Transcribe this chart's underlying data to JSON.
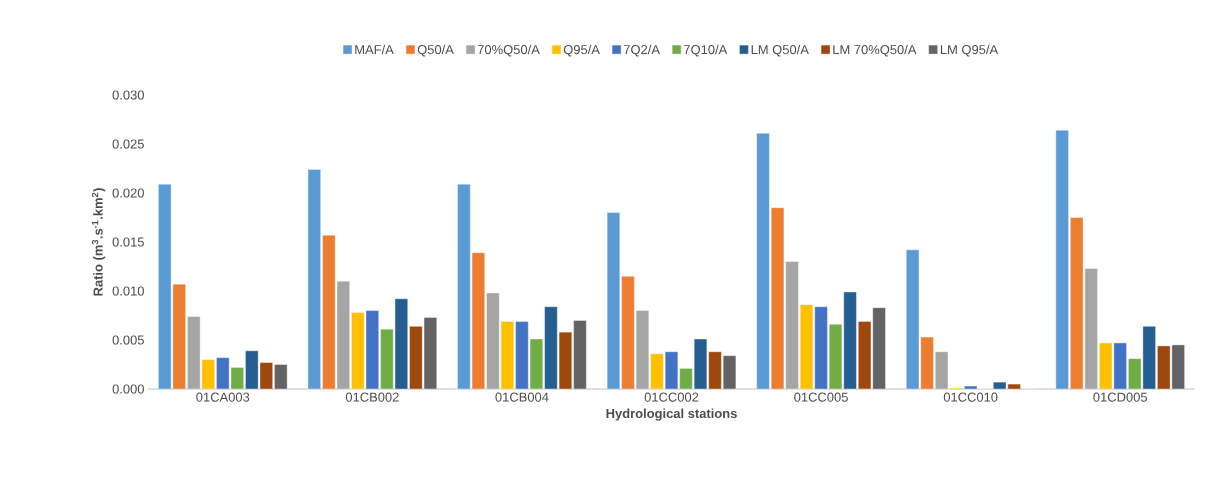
{
  "chart_data": {
    "type": "bar",
    "xlabel": "Hydrological stations",
    "ylabel": "Ratio (m$^{3}$.s$^{-1}$.km$^{2}$)",
    "categories": [
      "01CA003",
      "01CB002",
      "01CB004",
      "01CC002",
      "01CC005",
      "01CC010",
      "01CD005"
    ],
    "series": [
      {
        "name": "MAF/A",
        "color": "#5b9bd5",
        "values": [
          0.0209,
          0.0224,
          0.0209,
          0.018,
          0.0261,
          0.0142,
          0.0264
        ]
      },
      {
        "name": "Q50/A",
        "color": "#ed7d31",
        "values": [
          0.0107,
          0.0157,
          0.0139,
          0.0115,
          0.0185,
          0.0053,
          0.0175
        ]
      },
      {
        "name": "70%Q50/A",
        "color": "#a5a5a5",
        "values": [
          0.0074,
          0.011,
          0.0098,
          0.008,
          0.013,
          0.0038,
          0.0123
        ]
      },
      {
        "name": "Q95/A",
        "color": "#ffc000",
        "values": [
          0.003,
          0.0078,
          0.0069,
          0.0036,
          0.0086,
          0.0001,
          0.0047
        ]
      },
      {
        "name": "7Q2/A",
        "color": "#4472c4",
        "values": [
          0.0032,
          0.008,
          0.0069,
          0.0038,
          0.0084,
          0.0003,
          0.0047
        ]
      },
      {
        "name": "7Q10/A",
        "color": "#70ad47",
        "values": [
          0.0022,
          0.0061,
          0.0051,
          0.0021,
          0.0066,
          0.0,
          0.0031
        ]
      },
      {
        "name": "LM Q50/A",
        "color": "#255e91",
        "values": [
          0.0039,
          0.0092,
          0.0084,
          0.0051,
          0.0099,
          0.0007,
          0.0064
        ]
      },
      {
        "name": "LM 70%Q50/A",
        "color": "#9e480e",
        "values": [
          0.0027,
          0.0064,
          0.0058,
          0.0038,
          0.0069,
          0.0005,
          0.0044
        ]
      },
      {
        "name": "LM Q95/A",
        "color": "#636363",
        "values": [
          0.0025,
          0.0073,
          0.007,
          0.0034,
          0.0083,
          0.0,
          0.0045
        ]
      }
    ],
    "ylim": [
      0,
      0.03
    ],
    "yticks": [
      {
        "value": 0,
        "label": "0.000"
      },
      {
        "value": 0.005,
        "label": "0.005"
      },
      {
        "value": 0.01,
        "label": "0.010"
      },
      {
        "value": 0.015,
        "label": "0.015"
      },
      {
        "value": 0.02,
        "label": "0.020"
      },
      {
        "value": 0.025,
        "label": "0.025"
      },
      {
        "value": 0.03,
        "label": "0.030"
      }
    ],
    "legend": "top",
    "grid": false
  }
}
